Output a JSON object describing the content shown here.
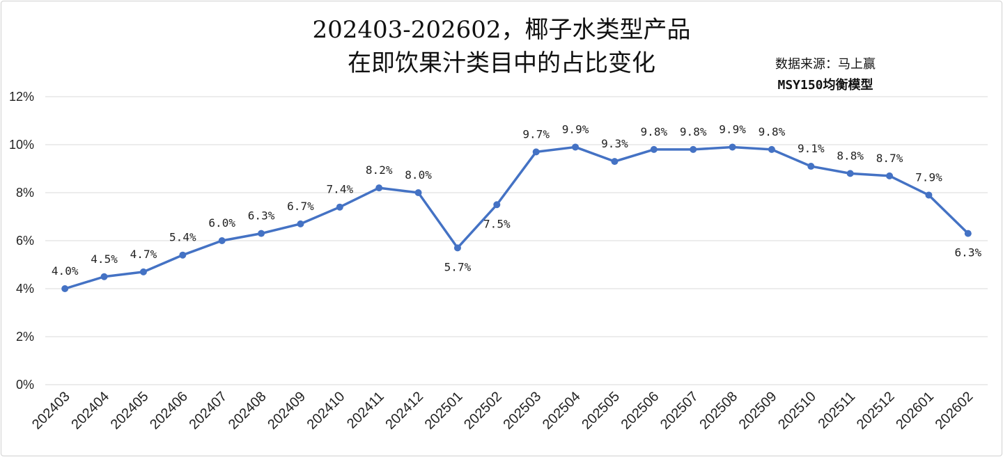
{
  "title_line1": "202403-202602，椰子水类型产品",
  "title_line2": "在即饮果汁类目中的占比变化",
  "source_line1": "数据来源：马上赢",
  "source_line2": "MSY150均衡模型",
  "chart_data": {
    "type": "line",
    "categories": [
      "202403",
      "202404",
      "202405",
      "202406",
      "202407",
      "202408",
      "202409",
      "202410",
      "202411",
      "202412",
      "202501",
      "202502",
      "202503",
      "202504",
      "202505",
      "202506",
      "202507",
      "202508",
      "202509",
      "202510",
      "202511",
      "202512",
      "202601",
      "202602"
    ],
    "values": [
      4.0,
      4.5,
      4.7,
      5.4,
      6.0,
      6.3,
      6.7,
      7.4,
      8.2,
      8.0,
      5.7,
      7.5,
      9.7,
      9.9,
      9.3,
      9.8,
      9.8,
      9.9,
      9.8,
      9.1,
      8.8,
      8.7,
      7.9,
      6.3
    ],
    "data_labels": [
      "4.0%",
      "4.5%",
      "4.7%",
      "5.4%",
      "6.0%",
      "6.3%",
      "6.7%",
      "7.4%",
      "8.2%",
      "8.0%",
      "5.7%",
      "7.5%",
      "9.7%",
      "9.9%",
      "9.3%",
      "9.8%",
      "9.8%",
      "9.9%",
      "9.8%",
      "9.1%",
      "8.8%",
      "8.7%",
      "7.9%",
      "6.3%"
    ],
    "label_below": [
      false,
      false,
      false,
      false,
      false,
      false,
      false,
      false,
      false,
      false,
      true,
      true,
      false,
      false,
      false,
      false,
      false,
      false,
      false,
      false,
      false,
      false,
      false,
      true
    ],
    "yticks": [
      0,
      2,
      4,
      6,
      8,
      10,
      12
    ],
    "ytick_labels": [
      "0%",
      "2%",
      "4%",
      "6%",
      "8%",
      "10%",
      "12%"
    ],
    "ylim": [
      0,
      12
    ],
    "grid": true,
    "line_color": "#4472C4",
    "grid_color": "#d9d9d9"
  }
}
